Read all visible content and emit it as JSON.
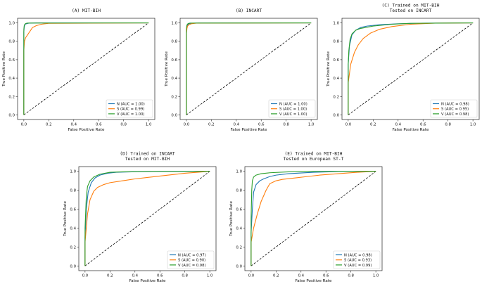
{
  "figure": {
    "series_colors": {
      "N": "#1f77b4",
      "S": "#ff7f0e",
      "V": "#2ca02c"
    },
    "diagonal_color": "#000000"
  },
  "chart_data": [
    {
      "type": "line",
      "title_lines": [
        "(A)  MIT-BIH"
      ],
      "xlabel": "False Positive Rate",
      "ylabel": "True Positive Rate",
      "xlim": [
        0,
        1
      ],
      "ylim": [
        0,
        1
      ],
      "xticks": [
        "0.0",
        "0.2",
        "0.4",
        "0.6",
        "0.8",
        "1.0"
      ],
      "yticks": [
        "0.0",
        "0.2",
        "0.4",
        "0.6",
        "0.8",
        "1.0"
      ],
      "legend_position": "lower-right",
      "series": [
        {
          "name": "N",
          "legend": "N (AUC = 1.00)",
          "x": [
            0,
            0,
            0.003,
            0.006,
            0.01,
            0.02,
            0.04,
            0.1,
            1
          ],
          "y": [
            0,
            0.9,
            0.95,
            0.97,
            0.985,
            0.99,
            0.997,
            1.0,
            1.0
          ]
        },
        {
          "name": "S",
          "legend": "S (AUC = 0.99)",
          "x": [
            0,
            0,
            0.005,
            0.015,
            0.03,
            0.05,
            0.07,
            0.1,
            0.14,
            0.2,
            1
          ],
          "y": [
            0,
            0.7,
            0.8,
            0.84,
            0.87,
            0.91,
            0.95,
            0.97,
            0.985,
            0.995,
            1.0
          ]
        },
        {
          "name": "V",
          "legend": "V (AUC = 1.00)",
          "x": [
            0,
            0,
            0.003,
            0.008,
            0.015,
            0.03,
            1
          ],
          "y": [
            0,
            0.93,
            0.97,
            0.985,
            0.993,
            0.998,
            1.0
          ]
        }
      ]
    },
    {
      "type": "line",
      "title_lines": [
        "(B)  INCART"
      ],
      "xlabel": "False Positive Rate",
      "ylabel": "True Positive Rate",
      "xlim": [
        0,
        1
      ],
      "ylim": [
        0,
        1
      ],
      "xticks": [
        "0.0",
        "0.2",
        "0.4",
        "0.6",
        "0.8",
        "1.0"
      ],
      "yticks": [
        "0.0",
        "0.2",
        "0.4",
        "0.6",
        "0.8",
        "1.0"
      ],
      "legend_position": "lower-right",
      "series": [
        {
          "name": "N",
          "legend": "N (AUC = 1.00)",
          "x": [
            0,
            0,
            0.003,
            0.008,
            0.02,
            0.05,
            0.1,
            1
          ],
          "y": [
            0,
            0.9,
            0.95,
            0.975,
            0.99,
            0.996,
            0.999,
            1.0
          ]
        },
        {
          "name": "S",
          "legend": "S (AUC = 1.00)",
          "x": [
            0,
            0,
            0.005,
            0.01,
            0.02,
            0.04,
            0.08,
            1
          ],
          "y": [
            0,
            0.88,
            0.94,
            0.965,
            0.98,
            0.99,
            0.997,
            1.0
          ]
        },
        {
          "name": "V",
          "legend": "V (AUC = 1.00)",
          "x": [
            0,
            0,
            0.003,
            0.008,
            0.015,
            0.03,
            1
          ],
          "y": [
            0,
            0.93,
            0.97,
            0.985,
            0.993,
            0.998,
            1.0
          ]
        }
      ]
    },
    {
      "type": "line",
      "title_lines": [
        "(C) Trained on MIT-BIH",
        "Tested on INCART"
      ],
      "xlabel": "False Positive Rate",
      "ylabel": "True Positive Rate",
      "xlim": [
        0,
        1
      ],
      "ylim": [
        0,
        1
      ],
      "xticks": [
        "0.0",
        "0.2",
        "0.4",
        "0.6",
        "0.8",
        "1.0"
      ],
      "yticks": [
        "0.0",
        "0.2",
        "0.4",
        "0.6",
        "0.8",
        "1.0"
      ],
      "legend_position": "lower-right",
      "series": [
        {
          "name": "N",
          "legend": "N (AUC = 0.98)",
          "x": [
            0,
            0,
            0.01,
            0.03,
            0.06,
            0.1,
            0.15,
            0.25,
            0.4,
            0.6,
            1
          ],
          "y": [
            0,
            0.55,
            0.75,
            0.87,
            0.92,
            0.95,
            0.965,
            0.98,
            0.99,
            0.997,
            1.0
          ]
        },
        {
          "name": "S",
          "legend": "S (AUC = 0.95)",
          "x": [
            0,
            0,
            0.02,
            0.05,
            0.08,
            0.12,
            0.18,
            0.25,
            0.35,
            0.5,
            0.7,
            1
          ],
          "y": [
            0,
            0.35,
            0.55,
            0.68,
            0.76,
            0.83,
            0.89,
            0.93,
            0.96,
            0.985,
            0.997,
            1.0
          ]
        },
        {
          "name": "V",
          "legend": "V (AUC = 0.98)",
          "x": [
            0,
            0,
            0.005,
            0.015,
            0.03,
            0.06,
            0.1,
            0.2,
            0.35,
            0.5,
            1
          ],
          "y": [
            0,
            0.55,
            0.7,
            0.82,
            0.88,
            0.92,
            0.94,
            0.965,
            0.985,
            0.995,
            1.0
          ]
        }
      ]
    },
    {
      "type": "line",
      "title_lines": [
        "(D) Trained on INCART",
        "Tested on MIT-BIH"
      ],
      "xlabel": "False Positive Rate",
      "ylabel": "True Positive Rate",
      "xlim": [
        0,
        1
      ],
      "ylim": [
        0,
        1
      ],
      "xticks": [
        "0.0",
        "0.2",
        "0.4",
        "0.6",
        "0.8",
        "1.0"
      ],
      "yticks": [
        "0.0",
        "0.2",
        "0.4",
        "0.6",
        "0.8",
        "1.0"
      ],
      "legend_position": "lower-right",
      "series": [
        {
          "name": "N",
          "legend": "N (AUC = 0.97)",
          "x": [
            0,
            0,
            0.01,
            0.025,
            0.05,
            0.08,
            0.12,
            0.18,
            0.25,
            0.4,
            0.6,
            1
          ],
          "y": [
            0,
            0.3,
            0.6,
            0.78,
            0.88,
            0.93,
            0.96,
            0.98,
            0.99,
            0.996,
            0.999,
            1.0
          ]
        },
        {
          "name": "S",
          "legend": "S (AUC = 0.90)",
          "x": [
            0,
            0,
            0.02,
            0.04,
            0.07,
            0.1,
            0.15,
            0.2,
            0.3,
            0.4,
            0.5,
            0.6,
            0.7,
            0.8,
            0.9,
            1
          ],
          "y": [
            0,
            0.25,
            0.55,
            0.7,
            0.79,
            0.83,
            0.86,
            0.88,
            0.9,
            0.92,
            0.935,
            0.95,
            0.965,
            0.98,
            0.99,
            1.0
          ]
        },
        {
          "name": "V",
          "legend": "V (AUC = 0.98)",
          "x": [
            0,
            0,
            0.01,
            0.02,
            0.04,
            0.07,
            0.12,
            0.2,
            0.3,
            0.5,
            1
          ],
          "y": [
            0,
            0.4,
            0.73,
            0.84,
            0.9,
            0.94,
            0.97,
            0.99,
            0.995,
            0.999,
            1.0
          ]
        }
      ]
    },
    {
      "type": "line",
      "title_lines": [
        "(E)  Trained on MIT-BIH",
        "Tested on European ST-T"
      ],
      "xlabel": "False Positive Rate",
      "ylabel": "True Positive Rate",
      "xlim": [
        0,
        1
      ],
      "ylim": [
        0,
        1
      ],
      "xticks": [
        "0.0",
        "0.2",
        "0.4",
        "0.6",
        "0.8",
        "1.0"
      ],
      "yticks": [
        "0.0",
        "0.2",
        "0.4",
        "0.6",
        "0.8",
        "1.0"
      ],
      "legend_position": "lower-right",
      "series": [
        {
          "name": "N",
          "legend": "N (AUC = 0.98)",
          "x": [
            0,
            0,
            0.01,
            0.02,
            0.04,
            0.07,
            0.1,
            0.15,
            0.2,
            0.3,
            0.5,
            0.7,
            1
          ],
          "y": [
            0,
            0.35,
            0.6,
            0.78,
            0.86,
            0.9,
            0.92,
            0.945,
            0.96,
            0.975,
            0.99,
            0.997,
            1.0
          ]
        },
        {
          "name": "S",
          "legend": "S (AUC = 0.93)",
          "x": [
            0,
            0,
            0.02,
            0.05,
            0.08,
            0.12,
            0.15,
            0.2,
            0.25,
            0.35,
            0.45,
            0.55,
            0.7,
            0.85,
            1
          ],
          "y": [
            0,
            0.25,
            0.4,
            0.55,
            0.68,
            0.8,
            0.87,
            0.9,
            0.915,
            0.93,
            0.945,
            0.96,
            0.975,
            0.99,
            1.0
          ]
        },
        {
          "name": "V",
          "legend": "V (AUC = 0.99)",
          "x": [
            0,
            0,
            0.005,
            0.01,
            0.02,
            0.04,
            0.08,
            0.15,
            0.3,
            0.5,
            1
          ],
          "y": [
            0,
            0.5,
            0.8,
            0.9,
            0.94,
            0.96,
            0.975,
            0.985,
            0.995,
            0.999,
            1.0
          ]
        }
      ]
    }
  ]
}
